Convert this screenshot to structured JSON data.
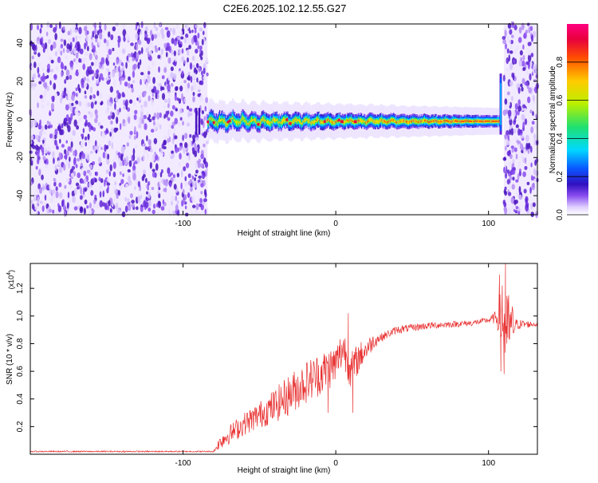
{
  "title": "C2E6.2025.102.12.55.G27",
  "chart_data": [
    {
      "type": "heatmap",
      "xlabel": "Height of straight line (km)",
      "ylabel": "Frequency (Hz)",
      "xlim": [
        -200,
        132
      ],
      "ylim": [
        -50,
        50
      ],
      "xticks": [
        -100,
        0,
        100
      ],
      "yticks": [
        -40,
        -20,
        0,
        20,
        40
      ],
      "noise_regions_km": [
        [
          -200,
          -84
        ],
        [
          110,
          132
        ]
      ],
      "signal_band": {
        "x_start": -84,
        "x_end": 108,
        "center_hz": -1,
        "half_width_hz": 3,
        "spike_at_km": 108,
        "spike_range_hz": [
          -8,
          24
        ]
      },
      "colorbar": {
        "label": "Normalized spectral amplitude",
        "range": [
          0,
          1
        ],
        "ticks": [
          "0.0",
          "0.2",
          "0.4",
          "0.6",
          "0.8"
        ],
        "tick_values": [
          0.0,
          0.2,
          0.4,
          0.6,
          0.8
        ]
      },
      "palette": [
        "#ffffff",
        "#d8c4ff",
        "#8a4cf0",
        "#3a1fc8",
        "#0a54ff",
        "#00d9ff",
        "#20e070",
        "#b8f000",
        "#ffcc00",
        "#ff5000",
        "#e8003c",
        "#ff0080"
      ]
    },
    {
      "type": "line",
      "xlabel": "Height of straight line (km)",
      "ylabel": "SNR (10 * v/v)",
      "scale_label": "(x10",
      "scale_exp": "4",
      "scale_close": ")",
      "xlim": [
        -200,
        132
      ],
      "ylim": [
        0,
        1.38
      ],
      "xticks": [
        -100,
        0,
        100
      ],
      "yticks": [
        "0.2",
        "0.4",
        "0.6",
        "0.8",
        "1.0",
        "1.2"
      ],
      "ytick_values": [
        0.2,
        0.4,
        0.6,
        0.8,
        1.0,
        1.2
      ],
      "series_color": "#e83030",
      "key_points": [
        [
          -200,
          0.02
        ],
        [
          -80,
          0.02
        ],
        [
          -75,
          0.1
        ],
        [
          -60,
          0.22
        ],
        [
          -40,
          0.35
        ],
        [
          -20,
          0.52
        ],
        [
          0,
          0.65
        ],
        [
          5,
          0.78
        ],
        [
          10,
          0.6
        ],
        [
          15,
          0.7
        ],
        [
          25,
          0.82
        ],
        [
          40,
          0.9
        ],
        [
          60,
          0.93
        ],
        [
          90,
          0.95
        ],
        [
          100,
          0.97
        ],
        [
          108,
          1.0
        ],
        [
          112,
          0.9
        ],
        [
          118,
          0.94
        ],
        [
          132,
          0.94
        ]
      ],
      "noise_amplitude_points": [
        [
          -200,
          0.005
        ],
        [
          -80,
          0.005
        ],
        [
          -75,
          0.06
        ],
        [
          -50,
          0.1
        ],
        [
          -30,
          0.15
        ],
        [
          -10,
          0.16
        ],
        [
          10,
          0.14
        ],
        [
          20,
          0.08
        ],
        [
          30,
          0.03
        ],
        [
          100,
          0.02
        ],
        [
          105,
          0.05
        ],
        [
          110,
          0.3
        ],
        [
          115,
          0.2
        ],
        [
          118,
          0.04
        ],
        [
          132,
          0.015
        ]
      ],
      "spikes": [
        [
          -10,
          0.55
        ],
        [
          -5,
          0.3
        ],
        [
          8,
          1.02
        ],
        [
          11,
          0.3
        ],
        [
          12,
          0.72
        ],
        [
          107,
          1.3
        ],
        [
          108,
          0.6
        ],
        [
          109,
          1.22
        ],
        [
          110,
          0.58
        ],
        [
          111,
          1.38
        ],
        [
          112,
          0.8
        ],
        [
          113,
          1.15
        ]
      ]
    }
  ]
}
